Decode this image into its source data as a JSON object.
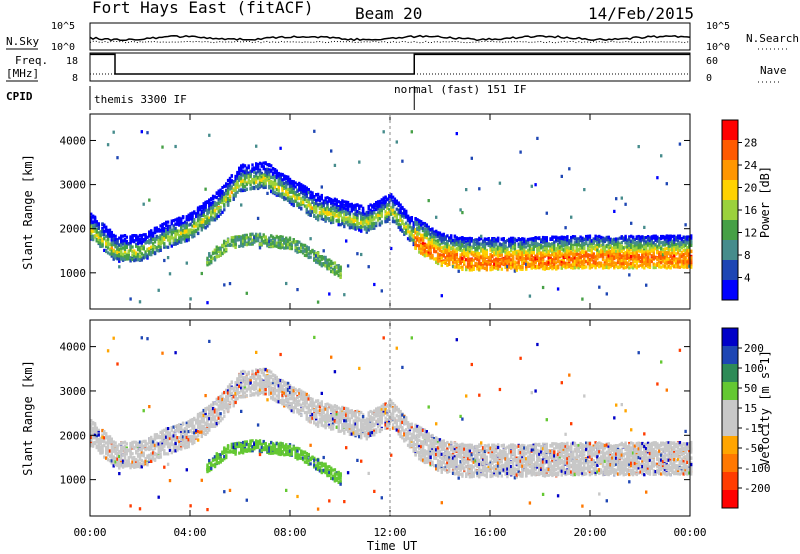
{
  "header": {
    "station": "Fort Hays East (fitACF)",
    "beam": "Beam 20",
    "date": "14/Feb/2015"
  },
  "panels": {
    "nsky_label": "N.Sky",
    "nsearch_label": "N.Search",
    "freq_label_1": "Freq.",
    "freq_label_2": "[MHz]",
    "nave_label": "Nave",
    "cpid_label": "CPID",
    "nsky_ticks": [
      "10^5",
      "10^0"
    ],
    "nsearch_ticks": [
      "10^5",
      "10^0"
    ],
    "freq_ticks": [
      "18",
      "8"
    ],
    "nave_ticks": [
      "60",
      "0"
    ],
    "cpid_1": "themis 3300 IF",
    "cpid_2": "normal (fast) 151 IF"
  },
  "power_colorbar": {
    "title": "Power [dB]",
    "ticks": [
      "28",
      "24",
      "20",
      "16",
      "12",
      "8",
      "4"
    ],
    "colors": [
      "#ff0000",
      "#ff5a00",
      "#ff9600",
      "#ffd200",
      "#9bd23c",
      "#46a046",
      "#468c8c",
      "#1e46b4",
      "#0000ff"
    ]
  },
  "velocity_colorbar": {
    "title": "Velocity [m s-1]",
    "ticks": [
      "200",
      "100",
      "50",
      "15",
      "-15",
      "-50",
      "-100",
      "-200"
    ],
    "colors": [
      "#0000c8",
      "#1e46b4",
      "#2e8b57",
      "#64c832",
      "#c8c8c8",
      "#c8c8c8",
      "#ffa500",
      "#ff7800",
      "#ff3c00",
      "#ff0000"
    ]
  },
  "chart_data": {
    "type": "heatmap",
    "xlabel": "Time UT",
    "ylabel": "Slant Range [km]",
    "x_ticks": [
      "00:00",
      "04:00",
      "08:00",
      "12:00",
      "16:00",
      "20:00",
      "00:00"
    ],
    "y_ticks": [
      "1000",
      "2000",
      "3000",
      "4000"
    ],
    "xlim": [
      0,
      24
    ],
    "ylim": [
      180,
      4600
    ],
    "cpid_change_hour": 12.97,
    "freq_themis_mhz": 10.5,
    "freq_normal_mhz": 17.5,
    "scatter_bands": [
      {
        "name": "main",
        "points": [
          [
            0.0,
            2000
          ],
          [
            1.0,
            1500
          ],
          [
            2.0,
            1500
          ],
          [
            3.0,
            1800
          ],
          [
            4.0,
            2000
          ],
          [
            5.0,
            2450
          ],
          [
            6.0,
            3100
          ],
          [
            7.0,
            3150
          ],
          [
            8.0,
            2800
          ],
          [
            9.0,
            2450
          ],
          [
            10.0,
            2300
          ],
          [
            11.0,
            2150
          ],
          [
            12.0,
            2450
          ],
          [
            13.0,
            1800
          ],
          [
            14.0,
            1450
          ],
          [
            15.0,
            1350
          ],
          [
            17.0,
            1350
          ],
          [
            20.0,
            1400
          ],
          [
            22.0,
            1400
          ],
          [
            24.0,
            1400
          ]
        ]
      },
      {
        "name": "lower",
        "points": [
          [
            4.6,
            1300
          ],
          [
            5.5,
            1700
          ],
          [
            6.5,
            1800
          ],
          [
            8.0,
            1700
          ],
          [
            9.0,
            1400
          ],
          [
            10.0,
            1050
          ]
        ]
      }
    ],
    "power_levels_db": [
      4,
      8,
      12,
      16,
      20,
      24,
      28
    ],
    "velocity_levels_ms": [
      -200,
      -100,
      -50,
      -15,
      15,
      50,
      100,
      200
    ]
  }
}
